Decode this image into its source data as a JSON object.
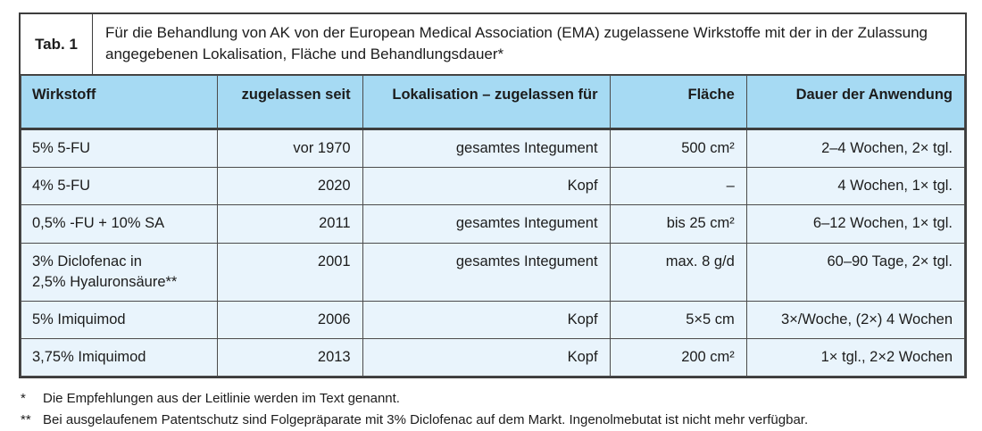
{
  "table": {
    "tag": "Tab. 1",
    "title": "Für die Behandlung von AK von der European Medical Association (EMA) zugelassene Wirkstoffe mit der in der Zulassung angegebenen Lokalisation, Fläche und Behandlungsdauer*",
    "columns": [
      "Wirkstoff",
      "zugelassen seit",
      "Lokalisation – zugelassen für",
      "Fläche",
      "Dauer der Anwendung"
    ],
    "rows": [
      [
        "5% 5-FU",
        "vor 1970",
        "gesamtes Integument",
        "500 cm²",
        "2–4 Wochen, 2× tgl."
      ],
      [
        "4% 5-FU",
        "2020",
        "Kopf",
        "–",
        "4 Wochen, 1× tgl."
      ],
      [
        "0,5% -FU + 10% SA",
        "2011",
        "gesamtes Integument",
        "bis 25 cm²",
        "6–12 Wochen, 1× tgl."
      ],
      [
        "3% Diclofenac in\n2,5% Hyaluronsäure**",
        "2001",
        "gesamtes Integument",
        "max. 8 g/d",
        "60–90 Tage, 2× tgl."
      ],
      [
        "5% Imiquimod",
        "2006",
        "Kopf",
        "5×5 cm",
        "3×/Woche, (2×) 4 Wochen"
      ],
      [
        "3,75% Imiquimod",
        "2013",
        "Kopf",
        "200 cm²",
        "1× tgl., 2×2 Wochen"
      ]
    ],
    "footnotes": [
      {
        "marker": "*",
        "text": "Die Empfehlungen aus der Leitlinie werden im Text genannt."
      },
      {
        "marker": "**",
        "text": "Bei ausgelaufenem Patentschutz sind Folgepräparate mit 3% Diclofenac auf dem Markt. Ingenolmebutat ist nicht mehr verfügbar."
      }
    ],
    "colors": {
      "header_bg": "#a6daf3",
      "row_bg": "#e9f4fc",
      "border": "#3d3d3d"
    }
  }
}
